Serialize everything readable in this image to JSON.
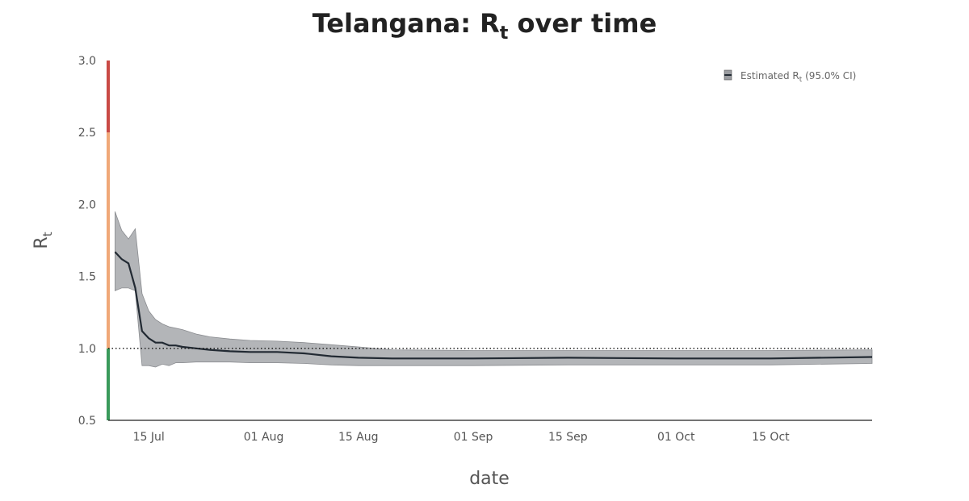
{
  "chart_data": {
    "type": "line",
    "title": {
      "main": "Telangana: R",
      "sub": "t",
      "rest": " over time"
    },
    "xlabel": "date",
    "ylabel": {
      "main": "R",
      "sub": "t"
    },
    "ylim": [
      0.5,
      3.0
    ],
    "xlim": [
      "2020-07-09",
      "2020-10-30"
    ],
    "yticks": [
      "0.5",
      "1.0",
      "1.5",
      "2.0",
      "2.5",
      "3.0"
    ],
    "xticks": [
      {
        "label": "15 Jul",
        "date": "2020-07-15"
      },
      {
        "label": "01 Aug",
        "date": "2020-08-01"
      },
      {
        "label": "15 Aug",
        "date": "2020-08-15"
      },
      {
        "label": "01 Sep",
        "date": "2020-09-01"
      },
      {
        "label": "15 Sep",
        "date": "2020-09-15"
      },
      {
        "label": "01 Oct",
        "date": "2020-10-01"
      },
      {
        "label": "15 Oct",
        "date": "2020-10-15"
      }
    ],
    "reference_line": 1.0,
    "legend": {
      "label_main": "Estimated R",
      "label_sub": "t",
      "label_rest": " (95.0% CI)",
      "position": "top-right"
    },
    "colors": {
      "line": "#222a33",
      "band": "#9a9ca0",
      "zone_low": "#3a9a5b",
      "zone_mid": "#f0a878",
      "zone_high": "#c94a45"
    },
    "zones": [
      {
        "from": 0.5,
        "to": 1.0
      },
      {
        "from": 1.0,
        "to": 2.5
      },
      {
        "from": 2.5,
        "to": 3.0
      }
    ],
    "series": [
      {
        "x": [
          "2020-07-10",
          "2020-07-11",
          "2020-07-12",
          "2020-07-13",
          "2020-07-14",
          "2020-07-15",
          "2020-07-16",
          "2020-07-17",
          "2020-07-18",
          "2020-07-19",
          "2020-07-20",
          "2020-07-22",
          "2020-07-24",
          "2020-07-27",
          "2020-07-30",
          "2020-08-03",
          "2020-08-07",
          "2020-08-11",
          "2020-08-15",
          "2020-08-20",
          "2020-09-01",
          "2020-09-15",
          "2020-10-01",
          "2020-10-15",
          "2020-10-30"
        ],
        "y": [
          1.67,
          1.62,
          1.59,
          1.42,
          1.12,
          1.07,
          1.04,
          1.04,
          1.02,
          1.02,
          1.01,
          1.0,
          0.99,
          0.98,
          0.975,
          0.975,
          0.965,
          0.945,
          0.935,
          0.93,
          0.93,
          0.935,
          0.93,
          0.93,
          0.94
        ],
        "lower": [
          1.4,
          1.42,
          1.42,
          1.4,
          0.88,
          0.88,
          0.87,
          0.89,
          0.88,
          0.9,
          0.9,
          0.905,
          0.905,
          0.905,
          0.9,
          0.9,
          0.895,
          0.885,
          0.88,
          0.88,
          0.88,
          0.885,
          0.885,
          0.885,
          0.895
        ],
        "upper": [
          1.95,
          1.82,
          1.76,
          1.83,
          1.38,
          1.26,
          1.2,
          1.17,
          1.15,
          1.14,
          1.13,
          1.1,
          1.08,
          1.065,
          1.055,
          1.05,
          1.04,
          1.025,
          1.01,
          0.99,
          0.985,
          0.985,
          0.985,
          0.985,
          0.99
        ]
      }
    ]
  }
}
